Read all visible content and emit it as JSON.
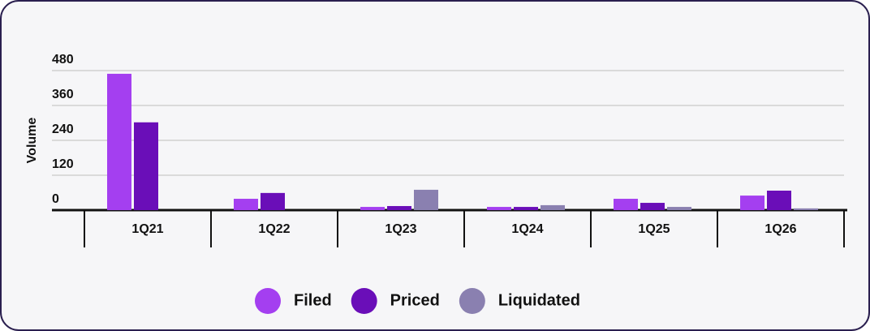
{
  "chart_data": {
    "type": "bar",
    "y_label": "Volume",
    "categories": [
      "1Q21",
      "1Q22",
      "1Q23",
      "1Q24",
      "1Q25",
      "1Q26"
    ],
    "series": [
      {
        "name": "Filed",
        "color": "#a43ff0",
        "values": [
          469,
          39,
          11,
          11,
          39,
          50
        ]
      },
      {
        "name": "Priced",
        "color": "#6a0eb8",
        "values": [
          302,
          59,
          14,
          11,
          25,
          67
        ]
      },
      {
        "name": "Liquidated",
        "color": "#8a80b0",
        "values": [
          0,
          0,
          70,
          17,
          11,
          6
        ]
      }
    ],
    "ylim": [
      0,
      480
    ],
    "yticks": [
      0,
      120,
      240,
      360,
      480
    ],
    "grid": true,
    "legend": "bottom"
  }
}
